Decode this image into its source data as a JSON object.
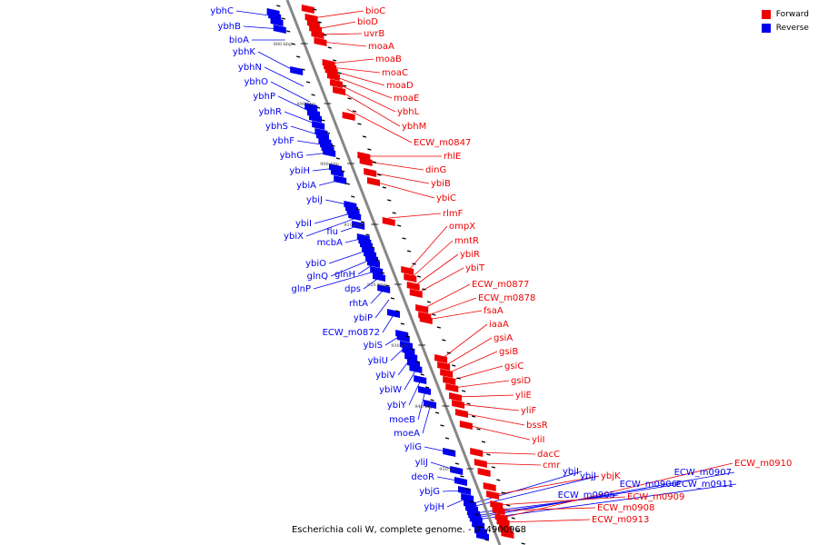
{
  "legend": {
    "items": [
      {
        "label": "Forward",
        "color": "#ee0000"
      },
      {
        "label": "Reverse",
        "color": "#0000ee"
      }
    ]
  },
  "caption": "Escherichia coli W, complete genome. - 0..4900968",
  "colors": {
    "forward": "#ee0000",
    "reverse": "#0000ee",
    "backbone": "#888888"
  },
  "ticks": [
    "880 kbp",
    "890 kbp",
    "900 kbp",
    "910 kbp",
    "920 kbp",
    "930 kbp",
    "940 kbp",
    "950 kbp"
  ],
  "reverse_labels": [
    "ybhC",
    "ybhB",
    "bioA",
    "ybhK",
    "ybhN",
    "ybhO",
    "ybhP",
    "ybhR",
    "ybhS",
    "ybhF",
    "ybhG",
    "ybiH",
    "ybiA",
    "ybiJ",
    "ybiI",
    "ybiX",
    "fiu",
    "mcbA",
    "ybiO",
    "glnQ",
    "glnH",
    "glnP",
    "dps",
    "rhtA",
    "ybiP",
    "ECW_m0872",
    "ybiS",
    "ybiU",
    "ybiV",
    "ybiW",
    "ybiY",
    "moeB",
    "moeA",
    "yliG",
    "yliJ",
    "deoR",
    "ybjG",
    "ybjH",
    "ybjI",
    "ybjJ",
    "ECW_m0905",
    "ECW_m0906",
    "ECW_m0907",
    "ECW_m0911"
  ],
  "forward_labels": [
    "bioC",
    "bioD",
    "uvrB",
    "moaA",
    "moaB",
    "moaC",
    "moaD",
    "moaE",
    "ybhL",
    "ybhM",
    "ECW_m0847",
    "rhlE",
    "dinG",
    "ybiB",
    "ybiC",
    "rlmF",
    "ompX",
    "mntR",
    "ybiR",
    "ybiT",
    "ECW_m0877",
    "ECW_m0878",
    "fsaA",
    "iaaA",
    "gsiA",
    "gsiB",
    "gsiC",
    "gsiD",
    "yliE",
    "yliF",
    "bssR",
    "yliI",
    "dacC",
    "cmr",
    "ybjK",
    "ECW_m0909",
    "ECW_m0910",
    "ECW_m0908",
    "ECW_m0913"
  ]
}
